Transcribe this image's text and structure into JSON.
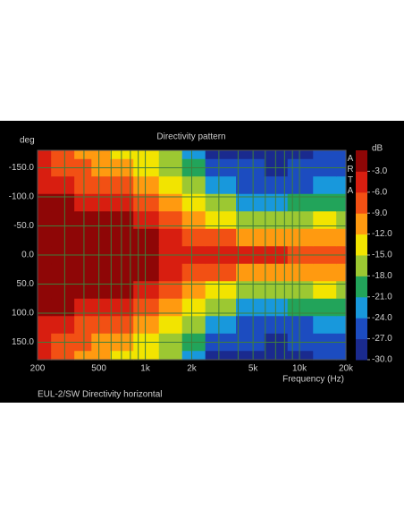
{
  "chart_data": {
    "type": "heatmap",
    "title": "Directivity pattern",
    "y_label": "deg",
    "x_label": "Frequency (Hz)",
    "colorbar_label": "dB",
    "brand": "ARTA",
    "footer": "EUL-2/SW  Directivity horizontal",
    "log_x": true,
    "grid": true,
    "x": [
      200,
      300,
      400,
      500,
      700,
      1000,
      1500,
      2000,
      3000,
      5000,
      7000,
      10000,
      15000,
      20000
    ],
    "y": [
      -180,
      -150,
      -120,
      -90,
      -60,
      -30,
      0,
      30,
      60,
      90,
      120,
      150,
      180
    ],
    "values": [
      [
        -6,
        -5,
        -4,
        -3,
        -2,
        -1,
        -1,
        -1,
        -2,
        -3,
        -4,
        -5,
        -6
      ],
      [
        -8,
        -7,
        -5,
        -3,
        -2,
        -1,
        -1,
        -1,
        -2,
        -3,
        -5,
        -7,
        -8
      ],
      [
        -10,
        -9,
        -7,
        -4,
        -2,
        -1,
        -1,
        -1,
        -2,
        -4,
        -7,
        -9,
        -10
      ],
      [
        -12,
        -11,
        -8,
        -5,
        -3,
        -2,
        -1,
        -2,
        -3,
        -5,
        -8,
        -11,
        -12
      ],
      [
        -13,
        -12,
        -9,
        -6,
        -3,
        -2,
        -1,
        -2,
        -3,
        -6,
        -9,
        -12,
        -13
      ],
      [
        -14,
        -14,
        -12,
        -8,
        -4,
        -2,
        -1,
        -2,
        -4,
        -8,
        -12,
        -14,
        -14
      ],
      [
        -18,
        -16,
        -14,
        -10,
        -7,
        -5,
        -4,
        -5,
        -7,
        -10,
        -14,
        -16,
        -18
      ],
      [
        -22,
        -20,
        -16,
        -13,
        -10,
        -7,
        -5,
        -7,
        -10,
        -13,
        -16,
        -20,
        -22
      ],
      [
        -28,
        -26,
        -24,
        -18,
        -13,
        -9,
        -5,
        -9,
        -13,
        -18,
        -24,
        -26,
        -28
      ],
      [
        -29,
        -27,
        -25,
        -22,
        -16,
        -10,
        -5,
        -10,
        -16,
        -22,
        -25,
        -27,
        -29
      ],
      [
        -29,
        -28,
        -26,
        -22,
        -17,
        -11,
        -6,
        -11,
        -17,
        -22,
        -26,
        -28,
        -29
      ],
      [
        -28,
        -27,
        -25,
        -21,
        -16,
        -11,
        -7,
        -11,
        -16,
        -21,
        -25,
        -27,
        -28
      ],
      [
        -27,
        -26,
        -24,
        -20,
        -15,
        -11,
        -8,
        -11,
        -15,
        -20,
        -24,
        -26,
        -27
      ],
      [
        -26,
        -25,
        -23,
        -20,
        -16,
        -12,
        -9,
        -12,
        -16,
        -20,
        -23,
        -25,
        -26
      ]
    ],
    "xlim": [
      200,
      20000
    ],
    "ylim": [
      -180,
      180
    ],
    "xticks": [
      200,
      500,
      {
        "value": 1000,
        "label": "1k"
      },
      {
        "value": 2000,
        "label": "2k"
      },
      {
        "value": 5000,
        "label": "5k"
      },
      {
        "value": 10000,
        "label": "10k"
      },
      {
        "value": 20000,
        "label": "20k"
      }
    ],
    "xgrid_minor": [
      300,
      400,
      600,
      700,
      800,
      900,
      3000,
      4000,
      6000,
      7000,
      8000,
      9000
    ],
    "yticks": [
      {
        "value": -150,
        "label": "-150.0"
      },
      {
        "value": -100,
        "label": "-100.0"
      },
      {
        "value": -50,
        "label": "-50.0"
      },
      {
        "value": 0,
        "label": "0.0"
      },
      {
        "value": 50,
        "label": "50.0"
      },
      {
        "value": 100,
        "label": "100.0"
      },
      {
        "value": 150,
        "label": "150.0"
      }
    ],
    "clim": [
      -30,
      0
    ],
    "cticks": [
      {
        "value": -3,
        "label": "-3.0"
      },
      {
        "value": -6,
        "label": "-6.0"
      },
      {
        "value": -9,
        "label": "-9.0"
      },
      {
        "value": -12,
        "label": "-12.0"
      },
      {
        "value": -15,
        "label": "-15.0"
      },
      {
        "value": -18,
        "label": "-18.0"
      },
      {
        "value": -21,
        "label": "-21.0"
      },
      {
        "value": -24,
        "label": "-24.0"
      },
      {
        "value": -27,
        "label": "-27.0"
      },
      {
        "value": -30,
        "label": "-30.0"
      }
    ],
    "colors": [
      "#1a2a8e",
      "#1c4cc0",
      "#1898dc",
      "#22a45a",
      "#9cc832",
      "#f2e400",
      "#ff9a10",
      "#f25014",
      "#d81e10",
      "#8e0606"
    ]
  }
}
